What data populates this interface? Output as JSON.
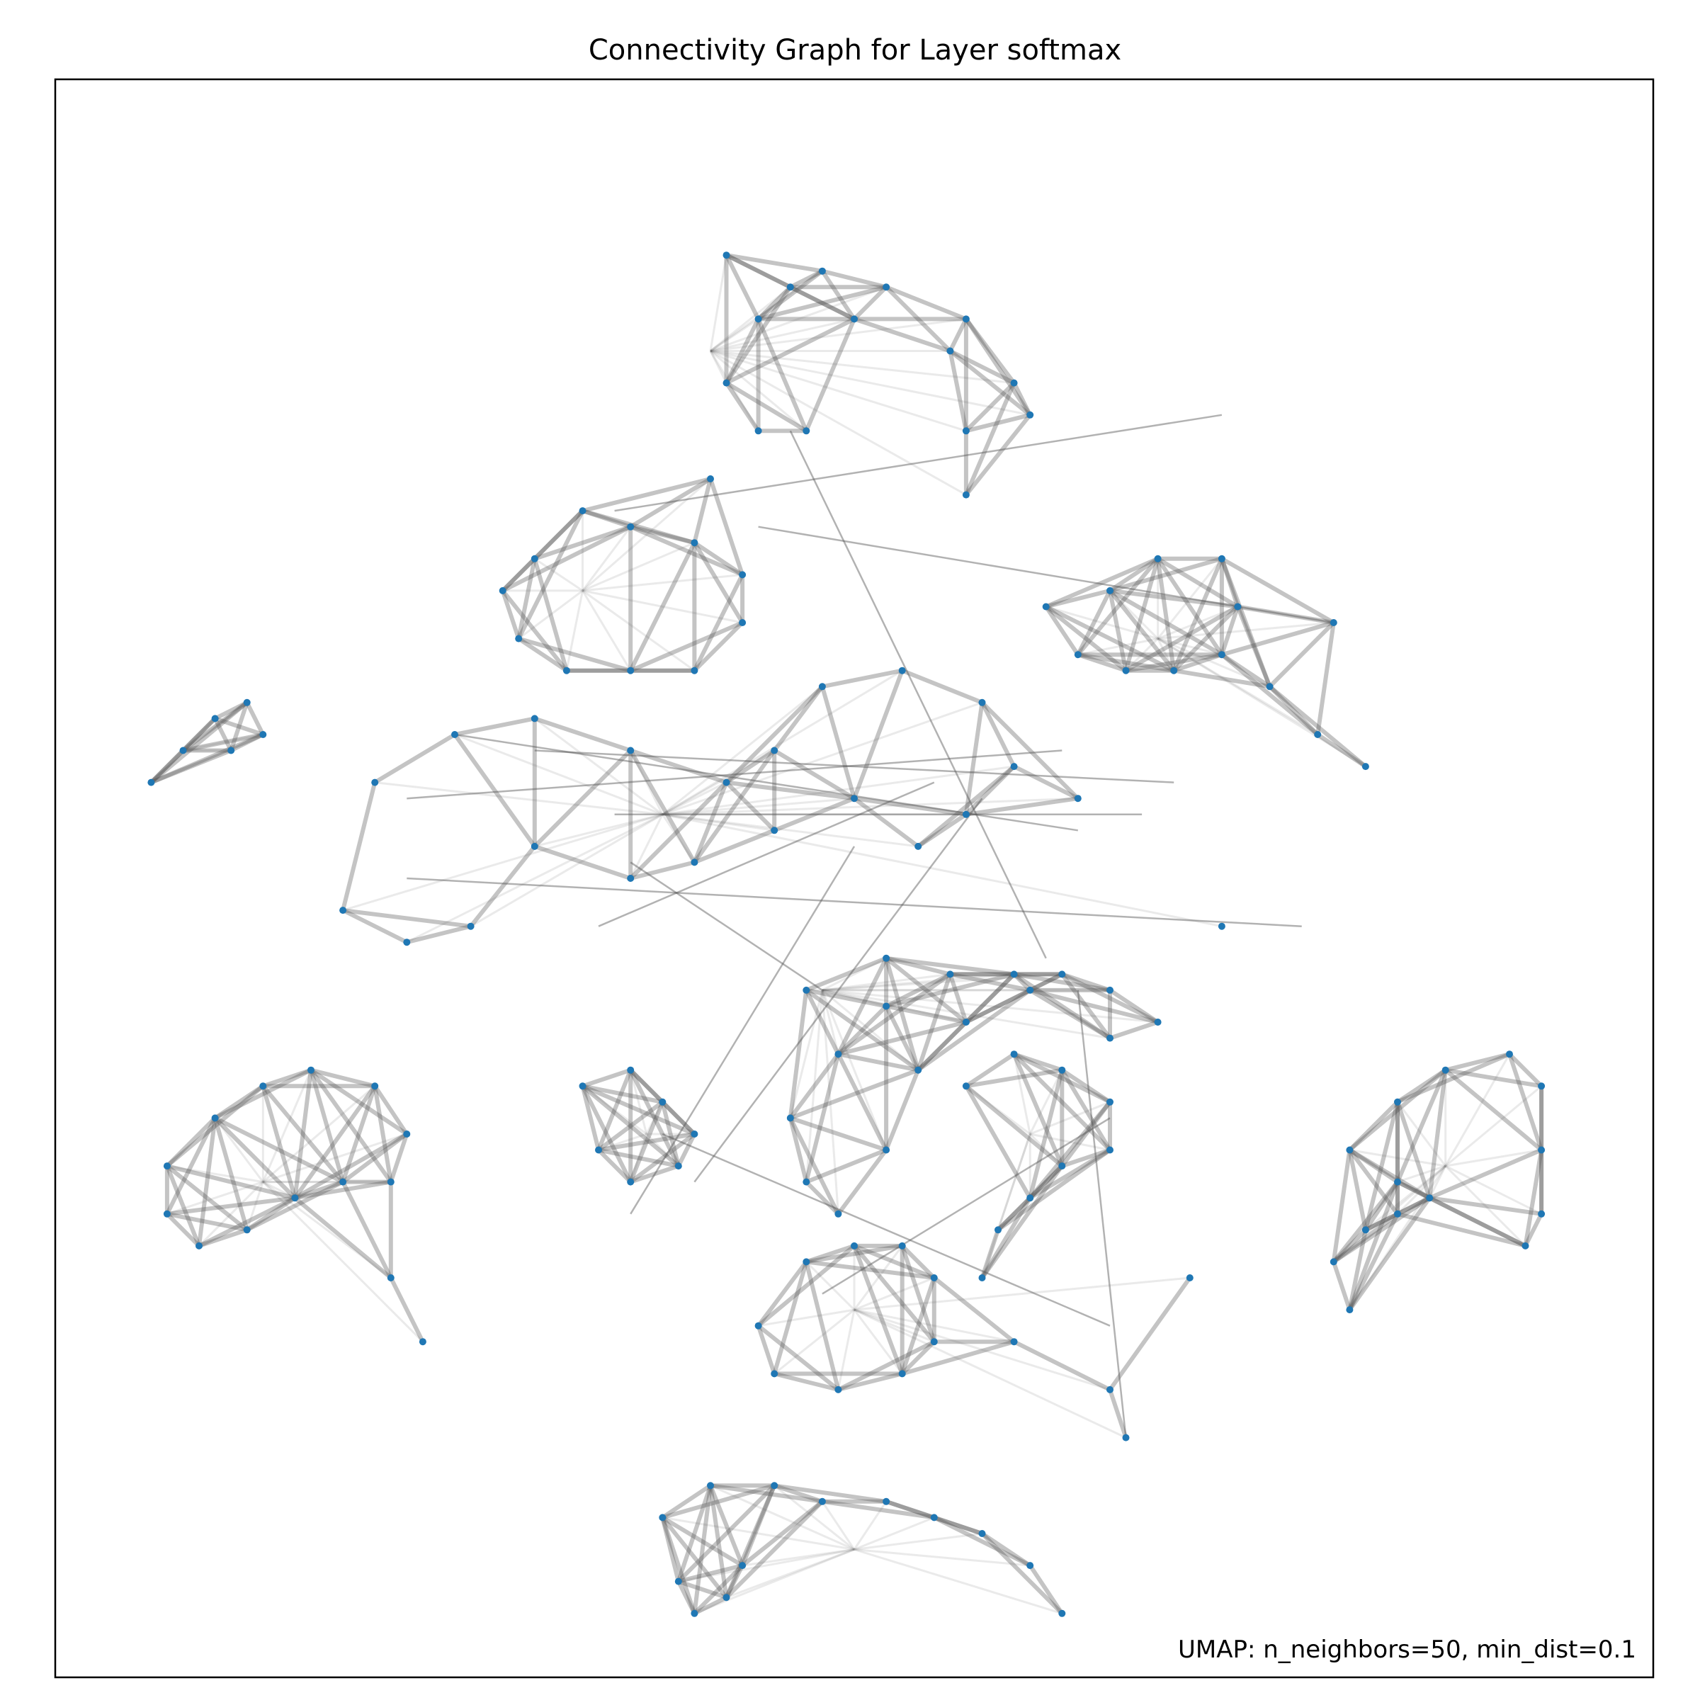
{
  "chart_data": {
    "type": "scatter",
    "subtype": "umap-connectivity-graph",
    "title": "Connectivity Graph for Layer softmax",
    "annotation": "UMAP: n_neighbors=50, min_dist=0.1",
    "xlabel": "",
    "ylabel": "",
    "ticks": "none",
    "grid": false,
    "point_color": "#1f77b4",
    "edge_color": "#555555",
    "x_range": [
      0,
      1
    ],
    "y_range": [
      0,
      1
    ],
    "clusters": [
      {
        "id": "top-swirl",
        "cx": 0.41,
        "cy": 0.83,
        "points": [
          [
            0.42,
            0.89
          ],
          [
            0.46,
            0.87
          ],
          [
            0.48,
            0.88
          ],
          [
            0.52,
            0.87
          ],
          [
            0.57,
            0.85
          ],
          [
            0.6,
            0.81
          ],
          [
            0.61,
            0.79
          ],
          [
            0.57,
            0.78
          ],
          [
            0.57,
            0.74
          ],
          [
            0.56,
            0.83
          ],
          [
            0.5,
            0.85
          ],
          [
            0.44,
            0.85
          ],
          [
            0.42,
            0.81
          ],
          [
            0.44,
            0.78
          ],
          [
            0.47,
            0.78
          ]
        ]
      },
      {
        "id": "upper-left-ring",
        "cx": 0.33,
        "cy": 0.68,
        "points": [
          [
            0.3,
            0.7
          ],
          [
            0.33,
            0.73
          ],
          [
            0.36,
            0.72
          ],
          [
            0.4,
            0.71
          ],
          [
            0.43,
            0.69
          ],
          [
            0.43,
            0.66
          ],
          [
            0.4,
            0.63
          ],
          [
            0.36,
            0.63
          ],
          [
            0.32,
            0.63
          ],
          [
            0.29,
            0.65
          ],
          [
            0.28,
            0.68
          ],
          [
            0.41,
            0.75
          ]
        ]
      },
      {
        "id": "right-ring",
        "cx": 0.69,
        "cy": 0.65,
        "points": [
          [
            0.62,
            0.67
          ],
          [
            0.66,
            0.68
          ],
          [
            0.69,
            0.7
          ],
          [
            0.73,
            0.7
          ],
          [
            0.74,
            0.67
          ],
          [
            0.73,
            0.64
          ],
          [
            0.7,
            0.63
          ],
          [
            0.67,
            0.63
          ],
          [
            0.64,
            0.64
          ],
          [
            0.76,
            0.62
          ],
          [
            0.79,
            0.59
          ],
          [
            0.82,
            0.57
          ],
          [
            0.8,
            0.66
          ]
        ]
      },
      {
        "id": "far-left-tri",
        "cx": 0.08,
        "cy": 0.58,
        "points": [
          [
            0.06,
            0.56
          ],
          [
            0.08,
            0.58
          ],
          [
            0.1,
            0.6
          ],
          [
            0.12,
            0.61
          ],
          [
            0.13,
            0.59
          ],
          [
            0.11,
            0.58
          ]
        ]
      },
      {
        "id": "center-tangle",
        "cx": 0.38,
        "cy": 0.54,
        "points": [
          [
            0.25,
            0.59
          ],
          [
            0.3,
            0.6
          ],
          [
            0.36,
            0.58
          ],
          [
            0.42,
            0.56
          ],
          [
            0.45,
            0.58
          ],
          [
            0.48,
            0.62
          ],
          [
            0.53,
            0.63
          ],
          [
            0.58,
            0.61
          ],
          [
            0.6,
            0.57
          ],
          [
            0.57,
            0.54
          ],
          [
            0.54,
            0.52
          ],
          [
            0.5,
            0.55
          ],
          [
            0.45,
            0.53
          ],
          [
            0.4,
            0.51
          ],
          [
            0.36,
            0.5
          ],
          [
            0.3,
            0.52
          ],
          [
            0.2,
            0.56
          ],
          [
            0.18,
            0.48
          ],
          [
            0.22,
            0.46
          ],
          [
            0.26,
            0.47
          ],
          [
            0.64,
            0.55
          ],
          [
            0.73,
            0.47
          ]
        ]
      },
      {
        "id": "center-c",
        "cx": 0.48,
        "cy": 0.43,
        "points": [
          [
            0.47,
            0.43
          ],
          [
            0.52,
            0.45
          ],
          [
            0.56,
            0.44
          ],
          [
            0.6,
            0.44
          ],
          [
            0.63,
            0.44
          ],
          [
            0.66,
            0.43
          ],
          [
            0.69,
            0.41
          ],
          [
            0.66,
            0.4
          ],
          [
            0.61,
            0.43
          ],
          [
            0.57,
            0.41
          ],
          [
            0.52,
            0.42
          ],
          [
            0.49,
            0.39
          ],
          [
            0.46,
            0.35
          ],
          [
            0.47,
            0.31
          ],
          [
            0.49,
            0.29
          ],
          [
            0.52,
            0.33
          ],
          [
            0.54,
            0.38
          ]
        ]
      },
      {
        "id": "left-lower",
        "cx": 0.13,
        "cy": 0.31,
        "points": [
          [
            0.1,
            0.35
          ],
          [
            0.13,
            0.37
          ],
          [
            0.16,
            0.38
          ],
          [
            0.2,
            0.37
          ],
          [
            0.22,
            0.34
          ],
          [
            0.21,
            0.31
          ],
          [
            0.18,
            0.31
          ],
          [
            0.15,
            0.3
          ],
          [
            0.12,
            0.28
          ],
          [
            0.09,
            0.27
          ],
          [
            0.07,
            0.29
          ],
          [
            0.07,
            0.32
          ],
          [
            0.21,
            0.25
          ],
          [
            0.23,
            0.21
          ]
        ]
      },
      {
        "id": "center-blob",
        "cx": 0.37,
        "cy": 0.34,
        "points": [
          [
            0.33,
            0.37
          ],
          [
            0.36,
            0.38
          ],
          [
            0.38,
            0.36
          ],
          [
            0.4,
            0.34
          ],
          [
            0.39,
            0.32
          ],
          [
            0.36,
            0.31
          ],
          [
            0.34,
            0.33
          ]
        ]
      },
      {
        "id": "center-right-ring",
        "cx": 0.61,
        "cy": 0.34,
        "points": [
          [
            0.57,
            0.37
          ],
          [
            0.6,
            0.39
          ],
          [
            0.63,
            0.38
          ],
          [
            0.66,
            0.36
          ],
          [
            0.66,
            0.33
          ],
          [
            0.63,
            0.32
          ],
          [
            0.61,
            0.3
          ],
          [
            0.59,
            0.28
          ],
          [
            0.58,
            0.25
          ]
        ]
      },
      {
        "id": "lower-s",
        "cx": 0.5,
        "cy": 0.23,
        "points": [
          [
            0.44,
            0.22
          ],
          [
            0.47,
            0.26
          ],
          [
            0.5,
            0.27
          ],
          [
            0.53,
            0.27
          ],
          [
            0.55,
            0.25
          ],
          [
            0.55,
            0.21
          ],
          [
            0.53,
            0.19
          ],
          [
            0.49,
            0.18
          ],
          [
            0.45,
            0.19
          ],
          [
            0.6,
            0.21
          ],
          [
            0.66,
            0.18
          ],
          [
            0.71,
            0.25
          ],
          [
            0.67,
            0.15
          ]
        ]
      },
      {
        "id": "right-lower",
        "cx": 0.87,
        "cy": 0.32,
        "points": [
          [
            0.81,
            0.33
          ],
          [
            0.84,
            0.36
          ],
          [
            0.87,
            0.38
          ],
          [
            0.91,
            0.39
          ],
          [
            0.93,
            0.37
          ],
          [
            0.93,
            0.33
          ],
          [
            0.93,
            0.29
          ],
          [
            0.92,
            0.27
          ],
          [
            0.86,
            0.3
          ],
          [
            0.84,
            0.31
          ],
          [
            0.82,
            0.28
          ],
          [
            0.8,
            0.26
          ],
          [
            0.81,
            0.23
          ],
          [
            0.84,
            0.29
          ]
        ]
      },
      {
        "id": "bottom",
        "cx": 0.5,
        "cy": 0.08,
        "points": [
          [
            0.38,
            0.1
          ],
          [
            0.41,
            0.12
          ],
          [
            0.45,
            0.12
          ],
          [
            0.48,
            0.11
          ],
          [
            0.52,
            0.11
          ],
          [
            0.55,
            0.1
          ],
          [
            0.58,
            0.09
          ],
          [
            0.61,
            0.07
          ],
          [
            0.63,
            0.04
          ],
          [
            0.43,
            0.07
          ],
          [
            0.42,
            0.05
          ],
          [
            0.4,
            0.04
          ],
          [
            0.39,
            0.06
          ]
        ]
      }
    ],
    "bridges": [
      [
        [
          0.35,
          0.73
        ],
        [
          0.73,
          0.79
        ]
      ],
      [
        [
          0.44,
          0.72
        ],
        [
          0.8,
          0.66
        ]
      ],
      [
        [
          0.38,
          0.34
        ],
        [
          0.66,
          0.22
        ]
      ],
      [
        [
          0.48,
          0.24
        ],
        [
          0.66,
          0.35
        ]
      ],
      [
        [
          0.22,
          0.5
        ],
        [
          0.78,
          0.47
        ]
      ],
      [
        [
          0.3,
          0.58
        ],
        [
          0.7,
          0.56
        ]
      ],
      [
        [
          0.35,
          0.54
        ],
        [
          0.68,
          0.54
        ]
      ],
      [
        [
          0.25,
          0.59
        ],
        [
          0.64,
          0.53
        ]
      ],
      [
        [
          0.22,
          0.55
        ],
        [
          0.63,
          0.58
        ]
      ],
      [
        [
          0.36,
          0.51
        ],
        [
          0.48,
          0.43
        ]
      ],
      [
        [
          0.34,
          0.47
        ],
        [
          0.55,
          0.56
        ]
      ],
      [
        [
          0.64,
          0.43
        ],
        [
          0.67,
          0.15
        ]
      ],
      [
        [
          0.62,
          0.45
        ],
        [
          0.46,
          0.78
        ]
      ],
      [
        [
          0.36,
          0.29
        ],
        [
          0.5,
          0.52
        ]
      ],
      [
        [
          0.4,
          0.31
        ],
        [
          0.58,
          0.55
        ]
      ]
    ]
  }
}
